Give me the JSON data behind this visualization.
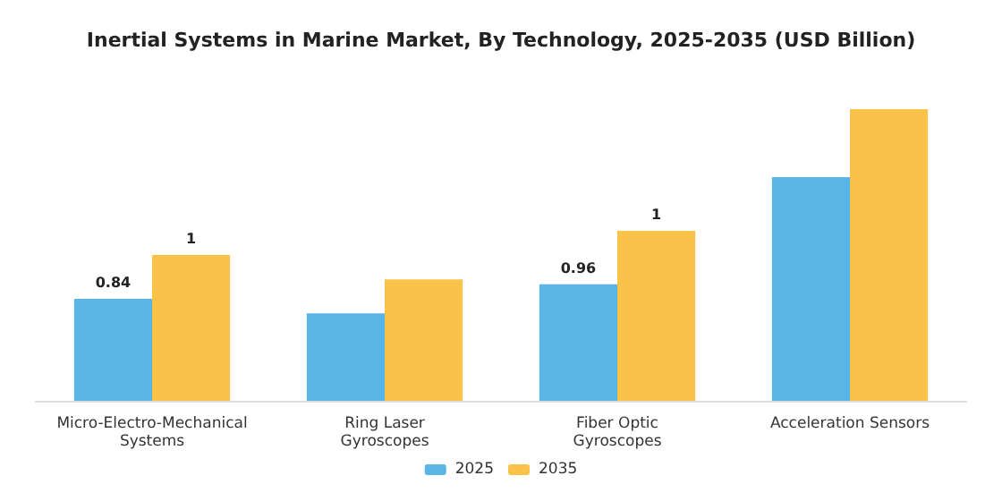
{
  "chart_data": {
    "type": "bar",
    "title": "Inertial Systems in Marine Market, By Technology, 2025-2035 (USD Billion)",
    "categories": [
      "Micro-Electro-Mechanical\nSystems",
      "Ring Laser\nGyroscopes",
      "Fiber Optic\nGyroscopes",
      "Acceleration Sensors"
    ],
    "series": [
      {
        "name": "2025",
        "color": "#5ab4e5",
        "values": [
          0.84,
          0.72,
          0.96,
          1.84
        ],
        "value_labels": [
          "0.84",
          null,
          "0.96",
          null
        ]
      },
      {
        "name": "2035",
        "color": "#f9c34a",
        "values": [
          1.2,
          1.0,
          1.4,
          2.4
        ],
        "value_labels": [
          "1",
          null,
          "1",
          null
        ]
      }
    ],
    "legend": "bottom"
  }
}
